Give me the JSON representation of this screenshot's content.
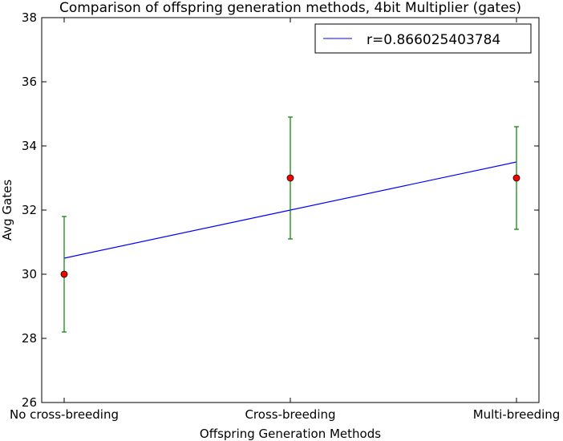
{
  "chart_data": {
    "type": "scatter",
    "title": "Comparison of offspring generation methods, 4bit Multiplier (gates)",
    "xlabel": "Offspring Generation Methods",
    "ylabel": "Avg Gates",
    "categories": [
      "No cross-breeding",
      "Cross-breeding",
      "Multi-breeding"
    ],
    "ylim": [
      26,
      38
    ],
    "yticks": [
      "26",
      "28",
      "30",
      "32",
      "34",
      "36",
      "38"
    ],
    "grid": false,
    "legend_position": "top-right",
    "points": {
      "values": [
        30.0,
        33.0,
        33.0
      ],
      "error_low": [
        28.2,
        31.1,
        31.4
      ],
      "error_high": [
        31.8,
        34.9,
        34.6
      ],
      "color": "#ff0000",
      "error_color": "#008000"
    },
    "fit_line": {
      "name": "r=0.866025403784",
      "values": [
        30.5,
        32.0,
        33.5
      ],
      "color": "#0000ff"
    }
  }
}
